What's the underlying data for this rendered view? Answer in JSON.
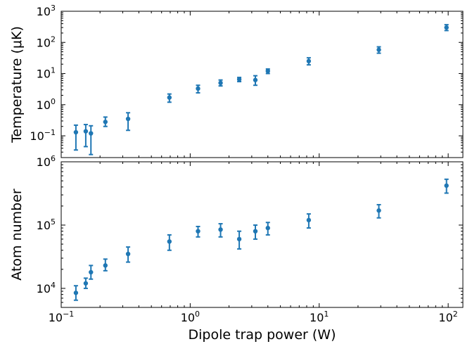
{
  "chart_data": [
    {
      "type": "scatter",
      "panel": "top",
      "ylabel": "Temperature (μK)",
      "xlabel": "",
      "xscale": "log",
      "yscale": "log",
      "xlim": [
        0.1,
        130
      ],
      "ylim": [
        0.02,
        1000
      ],
      "xticks": [
        0.1,
        1,
        10,
        100
      ],
      "yticks": [
        {
          "value": 0.1,
          "base": "10",
          "exp": "−1"
        },
        {
          "value": 1,
          "base": "10",
          "exp": "0"
        },
        {
          "value": 10,
          "base": "10",
          "exp": "1"
        },
        {
          "value": 100,
          "base": "10",
          "exp": "2"
        },
        {
          "value": 1000,
          "base": "10",
          "exp": "3"
        }
      ],
      "grid": false,
      "marker_color": "#1f77b4",
      "series": [
        {
          "points": [
            {
              "x": 0.13,
              "y": 0.13,
              "ylo": 0.035,
              "yhi": 0.22
            },
            {
              "x": 0.155,
              "y": 0.14,
              "ylo": 0.045,
              "yhi": 0.23
            },
            {
              "x": 0.17,
              "y": 0.12,
              "ylo": 0.025,
              "yhi": 0.21
            },
            {
              "x": 0.22,
              "y": 0.28,
              "ylo": 0.2,
              "yhi": 0.4
            },
            {
              "x": 0.33,
              "y": 0.35,
              "ylo": 0.15,
              "yhi": 0.55
            },
            {
              "x": 0.69,
              "y": 1.7,
              "ylo": 1.2,
              "yhi": 2.2
            },
            {
              "x": 1.15,
              "y": 3.3,
              "ylo": 2.4,
              "yhi": 4.2
            },
            {
              "x": 1.72,
              "y": 5.0,
              "ylo": 4.0,
              "yhi": 6.2
            },
            {
              "x": 2.4,
              "y": 6.5,
              "ylo": 5.5,
              "yhi": 7.5
            },
            {
              "x": 3.2,
              "y": 6.2,
              "ylo": 4.2,
              "yhi": 8.5
            },
            {
              "x": 4.0,
              "y": 12,
              "ylo": 10,
              "yhi": 14
            },
            {
              "x": 8.3,
              "y": 25,
              "ylo": 19,
              "yhi": 32
            },
            {
              "x": 29,
              "y": 58,
              "ylo": 45,
              "yhi": 72
            },
            {
              "x": 97,
              "y": 300,
              "ylo": 240,
              "yhi": 370
            }
          ]
        }
      ]
    },
    {
      "type": "scatter",
      "panel": "bottom",
      "ylabel": "Atom number",
      "xlabel": "Dipole trap power (W)",
      "xscale": "log",
      "yscale": "log",
      "xlim": [
        0.1,
        130
      ],
      "ylim": [
        5000,
        1000000
      ],
      "xticks": [
        {
          "value": 0.1,
          "base": "10",
          "exp": "−1"
        },
        {
          "value": 1,
          "base": "10",
          "exp": "0"
        },
        {
          "value": 10,
          "base": "10",
          "exp": "1"
        },
        {
          "value": 100,
          "base": "10",
          "exp": "2"
        }
      ],
      "yticks": [
        {
          "value": 10000,
          "base": "10",
          "exp": "4"
        },
        {
          "value": 100000,
          "base": "10",
          "exp": "5"
        },
        {
          "value": 1000000,
          "base": "10",
          "exp": "6"
        }
      ],
      "grid": false,
      "marker_color": "#1f77b4",
      "series": [
        {
          "points": [
            {
              "x": 0.13,
              "y": 8500,
              "ylo": 6500,
              "yhi": 11000
            },
            {
              "x": 0.155,
              "y": 12000,
              "ylo": 10000,
              "yhi": 14500
            },
            {
              "x": 0.17,
              "y": 18000,
              "ylo": 14000,
              "yhi": 23000
            },
            {
              "x": 0.22,
              "y": 23000,
              "ylo": 19000,
              "yhi": 29000
            },
            {
              "x": 0.33,
              "y": 35000,
              "ylo": 26000,
              "yhi": 45000
            },
            {
              "x": 0.69,
              "y": 55000,
              "ylo": 40000,
              "yhi": 70000
            },
            {
              "x": 1.15,
              "y": 80000,
              "ylo": 65000,
              "yhi": 95000
            },
            {
              "x": 1.72,
              "y": 85000,
              "ylo": 65000,
              "yhi": 105000
            },
            {
              "x": 2.4,
              "y": 60000,
              "ylo": 42000,
              "yhi": 80000
            },
            {
              "x": 3.2,
              "y": 80000,
              "ylo": 60000,
              "yhi": 100000
            },
            {
              "x": 4.0,
              "y": 90000,
              "ylo": 70000,
              "yhi": 110000
            },
            {
              "x": 8.3,
              "y": 120000,
              "ylo": 90000,
              "yhi": 150000
            },
            {
              "x": 29,
              "y": 170000,
              "ylo": 130000,
              "yhi": 210000
            },
            {
              "x": 97,
              "y": 420000,
              "ylo": 320000,
              "yhi": 530000
            }
          ]
        }
      ]
    }
  ]
}
